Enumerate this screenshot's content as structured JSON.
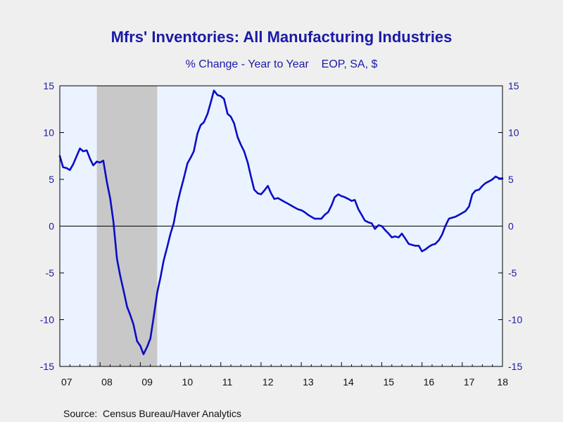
{
  "chart_data": {
    "type": "line",
    "title": "Mfrs' Inventories: All Manufacturing Industries",
    "subtitle": "% Change - Year to Year    EOP, SA, $",
    "source": "Source:  Census Bureau/Haver Analytics",
    "xlabel": "",
    "ylabel": "",
    "categories": [
      "07",
      "08",
      "09",
      "10",
      "11",
      "12",
      "13",
      "14",
      "15",
      "16",
      "17",
      "18"
    ],
    "xlim": [
      2007.0,
      2018.0
    ],
    "ylim": [
      -15,
      15
    ],
    "yticks": [
      "15",
      "10",
      "5",
      "0",
      "-5",
      "-10",
      "-15"
    ],
    "ytick_values": [
      15,
      10,
      5,
      0,
      -5,
      -10,
      -15
    ],
    "recession_shading": [
      2007.92,
      2009.42
    ],
    "grid": false,
    "zero_line": true,
    "colors": {
      "line": "#0c0cc6",
      "text": "#1a1aa6",
      "plot_bg": "#eaf3ff",
      "recession": "#c8c8c8",
      "page_bg": "#efefef"
    },
    "series": [
      {
        "x": [
          2007.0,
          2007.08,
          2007.17,
          2007.25,
          2007.33,
          2007.42,
          2007.5,
          2007.58,
          2007.67,
          2007.75,
          2007.83,
          2007.92,
          2008.0,
          2008.08,
          2008.17,
          2008.25,
          2008.33,
          2008.42,
          2008.5,
          2008.58,
          2008.67,
          2008.75,
          2008.83,
          2008.92,
          2009.0,
          2009.08,
          2009.17,
          2009.25,
          2009.33,
          2009.42,
          2009.5,
          2009.58,
          2009.67,
          2009.75,
          2009.83,
          2009.92,
          2010.0,
          2010.08,
          2010.17,
          2010.25,
          2010.33,
          2010.42,
          2010.5,
          2010.58,
          2010.67,
          2010.75,
          2010.83,
          2010.92,
          2011.0,
          2011.08,
          2011.17,
          2011.25,
          2011.33,
          2011.42,
          2011.5,
          2011.58,
          2011.67,
          2011.75,
          2011.83,
          2011.92,
          2012.0,
          2012.08,
          2012.17,
          2012.25,
          2012.33,
          2012.42,
          2012.5,
          2012.58,
          2012.67,
          2012.75,
          2012.83,
          2012.92,
          2013.0,
          2013.08,
          2013.17,
          2013.25,
          2013.33,
          2013.42,
          2013.5,
          2013.58,
          2013.67,
          2013.75,
          2013.83,
          2013.92,
          2014.0,
          2014.08,
          2014.17,
          2014.25,
          2014.33,
          2014.42,
          2014.5,
          2014.58,
          2014.67,
          2014.75,
          2014.83,
          2014.92,
          2015.0,
          2015.08,
          2015.17,
          2015.25,
          2015.33,
          2015.42,
          2015.5,
          2015.58,
          2015.67,
          2015.75,
          2015.83,
          2015.92,
          2016.0,
          2016.08,
          2016.17,
          2016.25,
          2016.33,
          2016.42,
          2016.5,
          2016.58,
          2016.67,
          2016.75,
          2016.83,
          2016.92,
          2017.0,
          2017.08,
          2017.17,
          2017.25,
          2017.33,
          2017.42,
          2017.5,
          2017.58,
          2017.67,
          2017.75,
          2017.83,
          2017.92,
          2018.0
        ],
        "values": [
          7.5,
          6.3,
          6.2,
          6.0,
          6.6,
          7.5,
          8.3,
          8.0,
          8.1,
          7.2,
          6.5,
          6.9,
          6.8,
          7.0,
          4.7,
          3.0,
          0.5,
          -3.5,
          -5.3,
          -6.8,
          -8.6,
          -9.5,
          -10.5,
          -12.3,
          -12.8,
          -13.7,
          -12.9,
          -12.0,
          -9.8,
          -7.1,
          -5.5,
          -3.7,
          -2.2,
          -0.8,
          0.3,
          2.4,
          3.8,
          5.1,
          6.7,
          7.3,
          8.0,
          9.9,
          10.8,
          11.1,
          12.0,
          13.2,
          14.5,
          14.0,
          13.9,
          13.6,
          12.0,
          11.7,
          11.0,
          9.5,
          8.7,
          8.0,
          6.8,
          5.3,
          3.9,
          3.5,
          3.4,
          3.8,
          4.3,
          3.5,
          2.9,
          3.0,
          2.8,
          2.6,
          2.4,
          2.2,
          2.0,
          1.8,
          1.7,
          1.5,
          1.2,
          1.0,
          0.8,
          0.8,
          0.8,
          1.2,
          1.5,
          2.2,
          3.1,
          3.4,
          3.2,
          3.1,
          2.9,
          2.7,
          2.8,
          1.8,
          1.2,
          0.6,
          0.4,
          0.3,
          -0.3,
          0.1,
          0.0,
          -0.4,
          -0.8,
          -1.2,
          -1.1,
          -1.2,
          -0.8,
          -1.3,
          -1.9,
          -2.0,
          -2.1,
          -2.1,
          -2.7,
          -2.5,
          -2.2,
          -2.0,
          -1.9,
          -1.5,
          -0.9,
          0.0,
          0.8,
          0.9,
          1.0,
          1.2,
          1.4,
          1.6,
          2.1,
          3.4,
          3.8,
          3.9,
          4.3,
          4.6,
          4.8,
          5.0,
          5.3,
          5.1,
          5.1
        ]
      }
    ]
  }
}
